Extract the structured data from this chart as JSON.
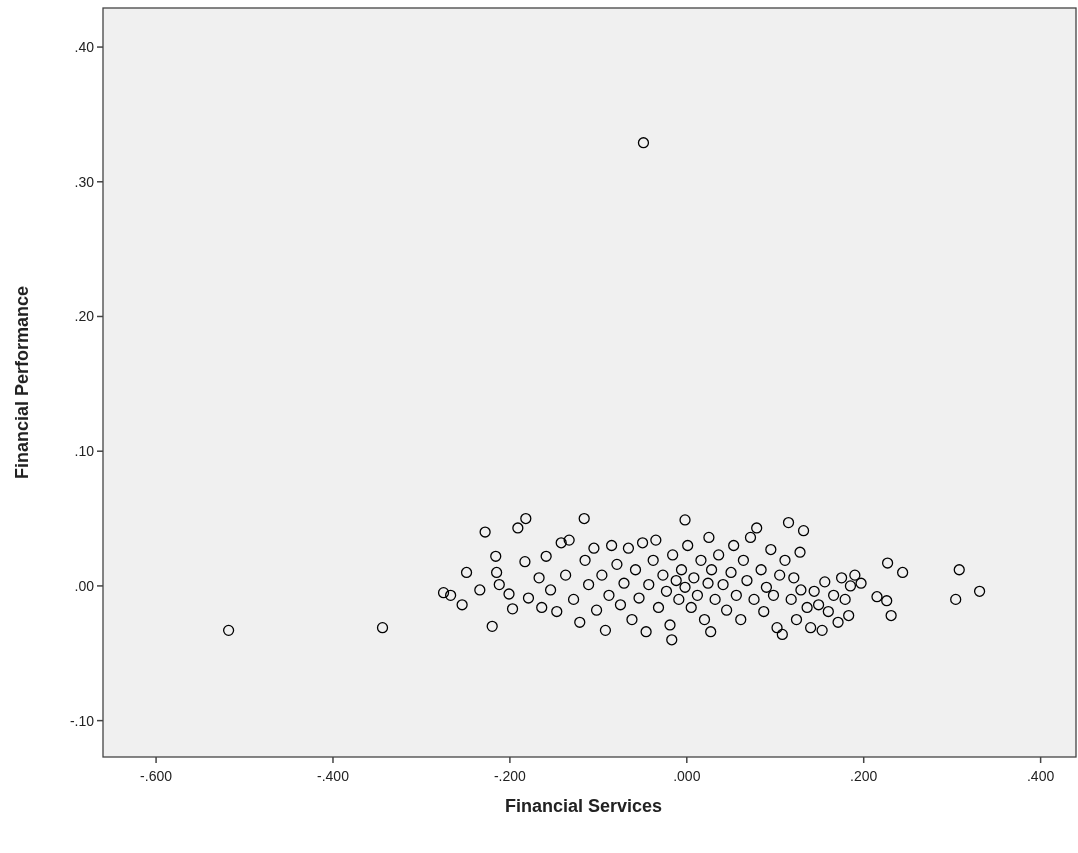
{
  "chart_data": {
    "type": "scatter",
    "xlabel": "Financial Services",
    "ylabel": "Financial Performance",
    "marker": "circle",
    "grid": false,
    "xlim": [
      -0.66,
      0.44
    ],
    "ylim": [
      -0.127,
      0.429
    ],
    "xticks": [
      {
        "value": -0.6,
        "label": "-.600"
      },
      {
        "value": -0.4,
        "label": "-.400"
      },
      {
        "value": -0.2,
        "label": "-.200"
      },
      {
        "value": 0,
        "label": ".000"
      },
      {
        "value": 0.2,
        "label": ".200"
      },
      {
        "value": 0.4,
        "label": ".400"
      }
    ],
    "yticks": [
      {
        "value": -0.1,
        "label": "-.10"
      },
      {
        "value": 0,
        "label": ".00"
      },
      {
        "value": 0.1,
        "label": ".10"
      },
      {
        "value": 0.2,
        "label": ".20"
      },
      {
        "value": 0.3,
        "label": ".30"
      },
      {
        "value": 0.4,
        "label": ".40"
      }
    ],
    "series": [
      {
        "color": "#000000",
        "x": [
          -0.049,
          -0.518,
          -0.344,
          -0.275,
          -0.267,
          -0.254,
          -0.249,
          -0.234,
          -0.228,
          -0.22,
          -0.216,
          -0.215,
          -0.212,
          -0.201,
          -0.197,
          -0.191,
          -0.182,
          -0.183,
          -0.179,
          -0.167,
          -0.164,
          -0.159,
          -0.154,
          -0.147,
          -0.142,
          -0.137,
          -0.133,
          -0.128,
          -0.121,
          -0.116,
          -0.115,
          -0.111,
          -0.105,
          -0.102,
          -0.096,
          -0.092,
          -0.088,
          -0.085,
          -0.079,
          -0.075,
          -0.071,
          -0.066,
          -0.062,
          -0.058,
          -0.054,
          -0.05,
          -0.046,
          -0.043,
          -0.038,
          -0.035,
          -0.032,
          -0.027,
          -0.023,
          -0.019,
          -0.016,
          -0.012,
          -0.009,
          -0.006,
          -0.002,
          -0.017,
          0.001,
          0.005,
          -0.002,
          0.008,
          0.012,
          0.016,
          0.02,
          0.024,
          0.028,
          0.032,
          0.025,
          0.036,
          0.027,
          0.041,
          0.045,
          0.05,
          0.053,
          0.056,
          0.061,
          0.064,
          0.068,
          0.072,
          0.076,
          0.079,
          0.084,
          0.087,
          0.09,
          0.095,
          0.098,
          0.102,
          0.105,
          0.108,
          0.111,
          0.115,
          0.118,
          0.121,
          0.124,
          0.128,
          0.129,
          0.132,
          0.136,
          0.14,
          0.144,
          0.149,
          0.153,
          0.156,
          0.16,
          0.166,
          0.171,
          0.175,
          0.179,
          0.183,
          0.185,
          0.19,
          0.197,
          0.215,
          0.226,
          0.227,
          0.231,
          0.244,
          0.304,
          0.308,
          0.331
        ],
        "values": [
          0.329,
          -0.033,
          -0.031,
          -0.005,
          -0.007,
          -0.014,
          0.01,
          -0.003,
          0.04,
          -0.03,
          0.022,
          0.01,
          0.001,
          -0.006,
          -0.017,
          0.043,
          0.05,
          0.018,
          -0.009,
          0.006,
          -0.016,
          0.022,
          -0.003,
          -0.019,
          0.032,
          0.008,
          0.034,
          -0.01,
          -0.027,
          0.05,
          0.019,
          0.001,
          0.028,
          -0.018,
          0.008,
          -0.033,
          -0.007,
          0.03,
          0.016,
          -0.014,
          0.002,
          0.028,
          -0.025,
          0.012,
          -0.009,
          0.032,
          -0.034,
          0.001,
          0.019,
          0.034,
          -0.016,
          0.008,
          -0.004,
          -0.029,
          0.023,
          0.004,
          -0.01,
          0.012,
          -0.001,
          -0.04,
          0.03,
          -0.016,
          0.049,
          0.006,
          -0.007,
          0.019,
          -0.025,
          0.002,
          0.012,
          -0.01,
          0.036,
          0.023,
          -0.034,
          0.001,
          -0.018,
          0.01,
          0.03,
          -0.007,
          -0.025,
          0.019,
          0.004,
          0.036,
          -0.01,
          0.043,
          0.012,
          -0.019,
          -0.001,
          0.027,
          -0.007,
          -0.031,
          0.008,
          -0.036,
          0.019,
          0.047,
          -0.01,
          0.006,
          -0.025,
          0.025,
          -0.003,
          0.041,
          -0.016,
          -0.031,
          -0.004,
          -0.014,
          -0.033,
          0.003,
          -0.019,
          -0.007,
          -0.027,
          0.006,
          -0.01,
          -0.022,
          0,
          0.008,
          0.002,
          -0.008,
          -0.011,
          0.017,
          -0.022,
          0.01,
          -0.01,
          0.012,
          -0.004
        ]
      }
    ]
  }
}
